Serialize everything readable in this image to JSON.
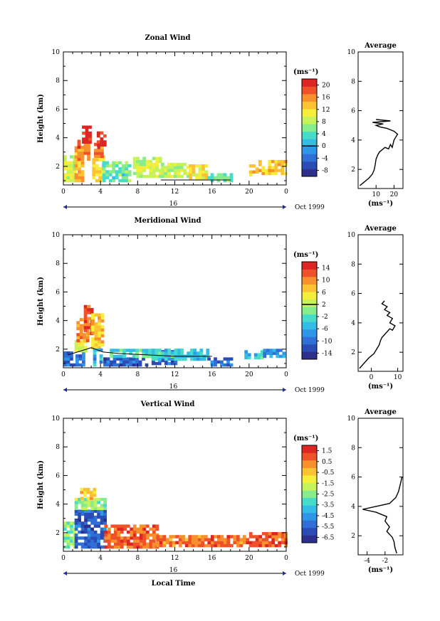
{
  "figure": {
    "xlabel": "Local Time",
    "ylabel": "Height (km)",
    "date_label": "Oct 1999",
    "day_label": "16",
    "x_ticks": [
      "0",
      "4",
      "8",
      "12",
      "16",
      "20",
      "0"
    ],
    "y_ticks": [
      "2",
      "4",
      "6",
      "8",
      "10"
    ],
    "units": "(ms⁻¹)",
    "avg_title": "Average",
    "avg_units": "(ms⁻¹)",
    "cmap": [
      "#2c2f8c",
      "#2b4bb5",
      "#2f6fd6",
      "#2f95e6",
      "#33bde6",
      "#47dcc9",
      "#86ec8c",
      "#c6f25a",
      "#f5ee3a",
      "#fbc331",
      "#f7902d",
      "#ef5228",
      "#dc2623"
    ]
  },
  "chart_data": [
    {
      "type": "heatmap",
      "title": "Zonal Wind",
      "xlabel": "",
      "ylabel": "Height (km)",
      "xlim": [
        0,
        24
      ],
      "ylim": [
        0.7,
        10
      ],
      "colorbar": {
        "ticks": [
          "-8",
          "-4",
          "0",
          "4",
          "8",
          "12",
          "16",
          "20"
        ],
        "range": [
          -10,
          22
        ]
      },
      "regions": [
        {
          "x": [
            0,
            1.2
          ],
          "y": [
            0.9,
            2.6
          ],
          "value": 9
        },
        {
          "x": [
            1.2,
            2.2
          ],
          "y": [
            0.9,
            3.3
          ],
          "value": 14
        },
        {
          "x": [
            1.5,
            2.8
          ],
          "y": [
            2.4,
            3.8
          ],
          "value": 17
        },
        {
          "x": [
            2.0,
            2.9
          ],
          "y": [
            3.6,
            4.8
          ],
          "value": 21
        },
        {
          "x": [
            3.1,
            4.2
          ],
          "y": [
            0.9,
            2.6
          ],
          "value": 12
        },
        {
          "x": [
            3.3,
            4.1
          ],
          "y": [
            2.6,
            3.6
          ],
          "value": 17
        },
        {
          "x": [
            3.6,
            4.4
          ],
          "y": [
            3.4,
            4.3
          ],
          "value": 20
        },
        {
          "x": [
            4.2,
            7.0
          ],
          "y": [
            0.9,
            2.2
          ],
          "value": 5
        },
        {
          "x": [
            7.5,
            10.5
          ],
          "y": [
            1.2,
            2.5
          ],
          "value": 9
        },
        {
          "x": [
            10.5,
            13.5
          ],
          "y": [
            1.2,
            2.2
          ],
          "value": 8
        },
        {
          "x": [
            13.5,
            15.5
          ],
          "y": [
            1.1,
            2.0
          ],
          "value": 11
        },
        {
          "x": [
            15.5,
            18.0
          ],
          "y": [
            0.9,
            1.4
          ],
          "value": 5
        },
        {
          "x": [
            20.0,
            21.0
          ],
          "y": [
            1.3,
            2.0
          ],
          "value": 13
        },
        {
          "x": [
            21.0,
            23.8
          ],
          "y": [
            1.4,
            2.3
          ],
          "value": 13
        }
      ],
      "contours": [
        {
          "level": 0,
          "x": [
            10.5,
            18.0
          ],
          "y": [
            1.05,
            1.05
          ]
        }
      ],
      "average_profile": {
        "xlim": [
          0,
          25
        ],
        "x_ticks": [
          "10",
          "20"
        ],
        "y_ticks": [
          "2",
          "4",
          "6",
          "8",
          "10"
        ],
        "x": [
          1,
          3,
          6,
          8,
          9,
          9.5,
          10,
          11,
          12,
          13,
          15,
          17,
          18,
          19,
          20,
          21,
          22,
          20,
          16,
          12,
          10,
          14,
          8,
          18,
          10
        ],
        "y": [
          0.9,
          1.1,
          1.4,
          1.7,
          2.0,
          2.3,
          2.7,
          3.0,
          3.2,
          3.3,
          3.5,
          3.4,
          3.7,
          3.5,
          4.0,
          4.2,
          4.4,
          4.6,
          4.8,
          4.9,
          5.0,
          5.1,
          5.2,
          5.3,
          5.4
        ]
      }
    },
    {
      "type": "heatmap",
      "title": "Meridional Wind",
      "xlabel": "",
      "ylabel": "Height (km)",
      "xlim": [
        0,
        24
      ],
      "ylim": [
        0.7,
        10
      ],
      "colorbar": {
        "ticks": [
          "-14",
          "-10",
          "-6",
          "-2",
          "2",
          "6",
          "10",
          "14"
        ],
        "range": [
          -16,
          16
        ]
      },
      "regions": [
        {
          "x": [
            0,
            1.3
          ],
          "y": [
            0.8,
            1.8
          ],
          "value": -10
        },
        {
          "x": [
            1.3,
            2.3
          ],
          "y": [
            0.8,
            1.8
          ],
          "value": -9
        },
        {
          "x": [
            1.2,
            2.4
          ],
          "y": [
            1.8,
            2.6
          ],
          "value": 4
        },
        {
          "x": [
            1.4,
            2.6
          ],
          "y": [
            2.5,
            4.0
          ],
          "value": 9
        },
        {
          "x": [
            2.2,
            3.0
          ],
          "y": [
            3.0,
            4.9
          ],
          "value": 12
        },
        {
          "x": [
            3.0,
            4.3
          ],
          "y": [
            2.0,
            4.4
          ],
          "value": 7
        },
        {
          "x": [
            3.2,
            4.0
          ],
          "y": [
            0.8,
            2.0
          ],
          "value": -6
        },
        {
          "x": [
            4.3,
            9.0
          ],
          "y": [
            0.8,
            1.4
          ],
          "value": -11
        },
        {
          "x": [
            5.0,
            9.5
          ],
          "y": [
            1.4,
            2.0
          ],
          "value": -3
        },
        {
          "x": [
            9.5,
            12.0
          ],
          "y": [
            0.9,
            1.8
          ],
          "value": -11
        },
        {
          "x": [
            9.5,
            15.5
          ],
          "y": [
            1.2,
            2.0
          ],
          "value": -4
        },
        {
          "x": [
            15.5,
            18.0
          ],
          "y": [
            0.8,
            1.3
          ],
          "value": -10
        },
        {
          "x": [
            19.5,
            21.5
          ],
          "y": [
            1.3,
            1.9
          ],
          "value": -4
        },
        {
          "x": [
            21.5,
            23.8
          ],
          "y": [
            1.4,
            1.9
          ],
          "value": -8
        }
      ],
      "contours": [
        {
          "level": 0,
          "x": [
            0.5,
            2,
            3,
            4.3,
            6,
            9,
            12,
            16
          ],
          "y": [
            1.6,
            1.9,
            2.1,
            1.8,
            1.7,
            1.6,
            1.5,
            1.5
          ]
        }
      ],
      "average_profile": {
        "xlim": [
          -5,
          12
        ],
        "x_ticks": [
          "0",
          "10"
        ],
        "y_ticks": [
          "2",
          "4",
          "6",
          "8",
          "10"
        ],
        "x": [
          -4.5,
          -3,
          -1,
          1,
          2,
          3,
          3.5,
          4,
          5,
          6,
          7,
          8,
          9,
          7,
          8,
          6,
          7,
          5,
          6,
          4,
          5
        ],
        "y": [
          0.9,
          1.2,
          1.6,
          1.9,
          2.2,
          2.5,
          2.8,
          3.0,
          3.2,
          3.4,
          3.6,
          3.5,
          3.8,
          4.0,
          4.3,
          4.5,
          4.7,
          4.9,
          5.1,
          5.3,
          5.5
        ]
      }
    },
    {
      "type": "heatmap",
      "title": "Vertical Wind",
      "xlabel": "Local Time",
      "ylabel": "Height (km)",
      "xlim": [
        0,
        24
      ],
      "ylim": [
        0.7,
        10
      ],
      "colorbar": {
        "ticks": [
          "-6.5",
          "-5.5",
          "-4.5",
          "-3.5",
          "-2.5",
          "-1.5",
          "-0.5",
          "0.5",
          "1.5"
        ],
        "range": [
          -7,
          2
        ]
      },
      "regions": [
        {
          "x": [
            0,
            1.2
          ],
          "y": [
            0.9,
            2.6
          ],
          "value": -2.3
        },
        {
          "x": [
            1.2,
            4.4
          ],
          "y": [
            0.9,
            3.6
          ],
          "value": -5.6
        },
        {
          "x": [
            1.2,
            4.4
          ],
          "y": [
            3.6,
            4.3
          ],
          "value": -2.2
        },
        {
          "x": [
            1.8,
            3.5
          ],
          "y": [
            4.3,
            5.0
          ],
          "value": -0.5
        },
        {
          "x": [
            4.4,
            10.0
          ],
          "y": [
            0.9,
            2.4
          ],
          "value": 0.8
        },
        {
          "x": [
            10.0,
            20.0
          ],
          "y": [
            1.0,
            1.8
          ],
          "value": 0.6
        },
        {
          "x": [
            20.0,
            23.8
          ],
          "y": [
            1.0,
            2.0
          ],
          "value": 0.8
        }
      ],
      "contours": [],
      "average_profile": {
        "xlim": [
          -5,
          0
        ],
        "x_ticks": [
          "-4",
          "-2"
        ],
        "y_ticks": [
          "2",
          "4",
          "6",
          "8",
          "10"
        ],
        "x": [
          -0.7,
          -0.9,
          -1.0,
          -1.2,
          -1.8,
          -1.5,
          -2.0,
          -1.8,
          -3.0,
          -4.5,
          -3.0,
          -1.5,
          -0.8,
          -0.5,
          -0.3,
          -0.1
        ],
        "y": [
          0.8,
          1.2,
          1.6,
          1.9,
          2.3,
          2.6,
          3.0,
          3.3,
          3.6,
          3.8,
          4.0,
          4.2,
          4.6,
          5.0,
          5.5,
          6.0
        ]
      }
    }
  ]
}
